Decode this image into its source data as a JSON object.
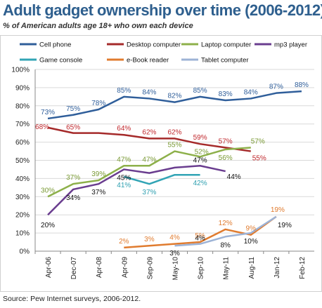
{
  "chart_data": {
    "type": "line",
    "title": "Adult gadget ownership over time (2006-2012)",
    "subtitle": "% of American adults age 18+ who own each device",
    "source": "Source: Pew Internet surveys, 2006-2012.",
    "categories": [
      "Apr-06",
      "Dec-07",
      "Apr-08",
      "Apr-09",
      "Sep-09",
      "May-10",
      "Sep-10",
      "May-11",
      "Aug-11",
      "Jan-12",
      "Feb-12"
    ],
    "ylim": [
      0,
      100
    ],
    "yticks": [
      "0%",
      "10%",
      "20%",
      "30%",
      "40%",
      "50%",
      "60%",
      "70%",
      "80%",
      "90%",
      "100%"
    ],
    "grid": true,
    "legend_position": "top",
    "series": [
      {
        "name": "Cell phone",
        "color": "#2F5E9A",
        "values": [
          73,
          75,
          78,
          85,
          84,
          82,
          85,
          83,
          84,
          87,
          88
        ],
        "labels": [
          "73%",
          "75%",
          "78%",
          "85%",
          "84%",
          "82%",
          "85%",
          "83%",
          "84%",
          "87%",
          "88%"
        ],
        "label_color": "#2F5E9A"
      },
      {
        "name": "Desktop computer",
        "color": "#A52A2A",
        "values": [
          68,
          65,
          65,
          64,
          62,
          62,
          59,
          57,
          55,
          null,
          null
        ],
        "labels": [
          "68%",
          "65%",
          "",
          "64%",
          "62%",
          "62%",
          "59%",
          "57%",
          "55%",
          "",
          ""
        ],
        "label_color": "#C0282D"
      },
      {
        "name": "Laptop computer",
        "color": "#8DB04A",
        "values": [
          30,
          37,
          39,
          47,
          47,
          55,
          52,
          56,
          57,
          null,
          null
        ],
        "labels": [
          "30%",
          "37%",
          "39%",
          "47%",
          "47%",
          "55%",
          "52%",
          "56%",
          "57%",
          "",
          ""
        ],
        "label_color": "#7A9A35"
      },
      {
        "name": "mp3 player",
        "color": "#6A3D8F",
        "values": [
          20,
          34,
          37,
          45,
          43,
          46,
          47,
          44,
          null,
          null,
          null
        ],
        "labels": [
          "20%",
          "34%",
          "37%",
          "45%",
          "",
          "",
          "47%",
          "44%",
          "",
          "",
          ""
        ],
        "label_color": "#111111"
      },
      {
        "name": "Game console",
        "color": "#31A4B5",
        "values": [
          null,
          null,
          null,
          41,
          37,
          42,
          42,
          null,
          null,
          null,
          null
        ],
        "labels": [
          "",
          "",
          "",
          "41%",
          "37%",
          "",
          "42%",
          "",
          "",
          "",
          ""
        ],
        "label_color": "#2E9FB0"
      },
      {
        "name": "e-Book reader",
        "color": "#E07B2E",
        "values": [
          null,
          null,
          null,
          2,
          3,
          4,
          5,
          12,
          9,
          19,
          null
        ],
        "labels": [
          "",
          "",
          "",
          "2%",
          "3%",
          "4%",
          "5%",
          "12%",
          "9%",
          "19%",
          ""
        ],
        "label_color": "#E07B2E"
      },
      {
        "name": "Tablet computer",
        "color": "#9DB3D6",
        "values": [
          null,
          null,
          null,
          null,
          null,
          3,
          4,
          8,
          10,
          19,
          null
        ],
        "labels": [
          "",
          "",
          "",
          "",
          "",
          "3%",
          "4%",
          "8%",
          "10%",
          "19%",
          ""
        ],
        "label_color": "#111111"
      }
    ]
  }
}
